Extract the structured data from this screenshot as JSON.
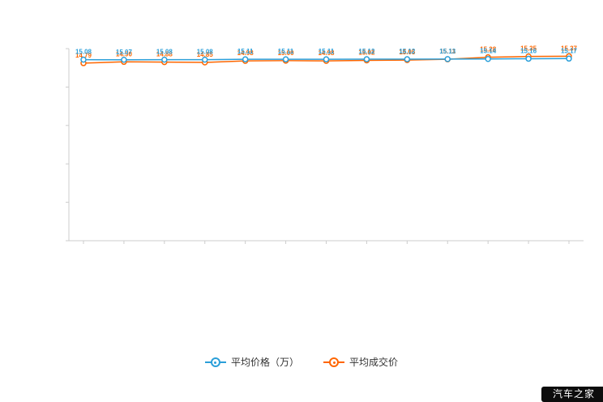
{
  "chart_data": {
    "type": "line",
    "title": "",
    "xlabel": "",
    "ylabel": "",
    "ylim": [
      0,
      16
    ],
    "grid": false,
    "legend_position": "bottom",
    "point_count": 13,
    "series": [
      {
        "name": "平均价格（万）",
        "color": "#2b9fd9",
        "values": [
          15.08,
          15.07,
          15.08,
          15.08,
          15.11,
          15.11,
          15.11,
          15.12,
          15.12,
          15.13,
          15.14,
          15.16,
          15.17
        ]
      },
      {
        "name": "平均成交价",
        "color": "#ff6600",
        "values": [
          14.79,
          14.9,
          14.88,
          14.85,
          14.98,
          15.0,
          14.98,
          15.02,
          15.05,
          15.11,
          15.28,
          15.35,
          15.37
        ]
      }
    ],
    "axis_color": "#cccccc"
  },
  "legend": {
    "items": [
      {
        "label": "平均价格（万）",
        "color": "#2b9fd9"
      },
      {
        "label": "平均成交价",
        "color": "#ff6600"
      }
    ]
  },
  "watermark": {
    "text": "汽车之家"
  }
}
